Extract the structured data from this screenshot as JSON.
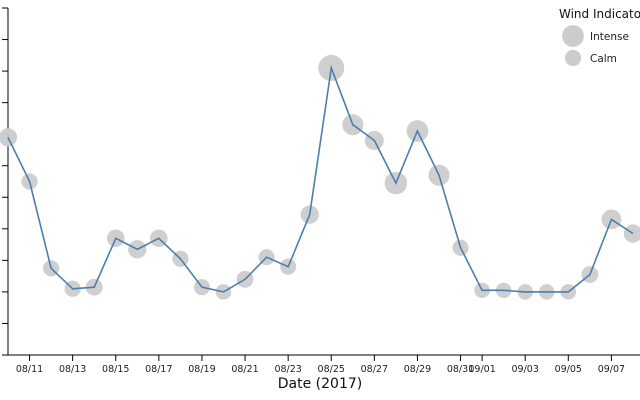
{
  "chart_data": {
    "type": "line",
    "xlabel": "Date (2017)",
    "ylabel": "",
    "title": "",
    "line_color": "#4a7fae",
    "bubble_color": "#cccccc",
    "x_tick_labels": [
      "08/11",
      "08/13",
      "08/15",
      "08/17",
      "08/19",
      "08/21",
      "08/23",
      "08/25",
      "08/27",
      "08/29",
      "08/31",
      "09/01",
      "09/03",
      "09/05",
      "09/07"
    ],
    "x_tick_dates": [
      "2017-08-11",
      "2017-08-13",
      "2017-08-15",
      "2017-08-17",
      "2017-08-19",
      "2017-08-21",
      "2017-08-23",
      "2017-08-25",
      "2017-08-27",
      "2017-08-29",
      "2017-08-31",
      "2017-09-01",
      "2017-09-03",
      "2017-09-05",
      "2017-09-07"
    ],
    "y_ticks_shown_without_labels": 12,
    "series": [
      {
        "x": [
          "2017-08-10",
          "2017-08-11",
          "2017-08-12",
          "2017-08-13",
          "2017-08-14",
          "2017-08-15",
          "2017-08-16",
          "2017-08-17",
          "2017-08-18",
          "2017-08-19",
          "2017-08-20",
          "2017-08-21",
          "2017-08-22",
          "2017-08-23",
          "2017-08-24",
          "2017-08-25",
          "2017-08-26",
          "2017-08-27",
          "2017-08-28",
          "2017-08-29",
          "2017-08-30",
          "2017-08-31",
          "2017-09-01",
          "2017-09-02",
          "2017-09-03",
          "2017-09-04",
          "2017-09-05",
          "2017-09-06",
          "2017-09-07",
          "2017-09-08"
        ],
        "y": [
          6.9,
          5.5,
          2.75,
          2.1,
          2.15,
          3.7,
          3.35,
          3.7,
          3.05,
          2.15,
          2.0,
          2.4,
          3.1,
          2.8,
          4.45,
          9.1,
          7.3,
          6.8,
          5.45,
          7.1,
          5.7,
          3.4,
          2.05,
          2.05,
          2.0,
          2.0,
          2.0,
          2.55,
          4.3,
          3.85
        ],
        "wind": [
          0.45,
          0.3,
          0.3,
          0.3,
          0.35,
          0.4,
          0.45,
          0.4,
          0.3,
          0.3,
          0.25,
          0.35,
          0.3,
          0.3,
          0.45,
          1.0,
          0.65,
          0.5,
          0.75,
          0.7,
          0.65,
          0.3,
          0.25,
          0.25,
          0.25,
          0.25,
          0.25,
          0.35,
          0.55,
          0.45
        ]
      }
    ],
    "legend": {
      "title": "Wind Indicator",
      "entries": [
        {
          "label": "Intense",
          "size": 0.7
        },
        {
          "label": "Calm",
          "size": 0.3
        }
      ],
      "placement": "top-right"
    },
    "ylim": [
      0,
      11
    ],
    "grid": false
  }
}
